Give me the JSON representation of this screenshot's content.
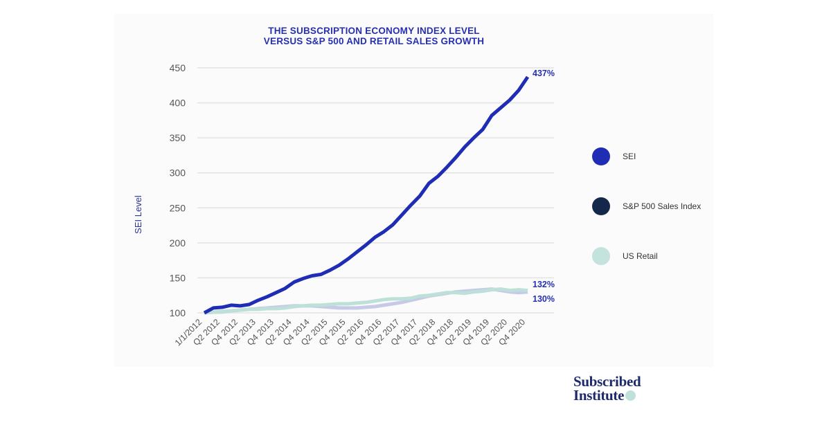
{
  "chart_data": {
    "type": "line",
    "title": "THE SUBSCRIPTION ECONOMY INDEX LEVEL VERSUS S&P 500 AND RETAIL SALES GROWTH",
    "title_lines": [
      "THE SUBSCRIPTION ECONOMY INDEX LEVEL",
      "VERSUS S&P 500 AND RETAIL SALES GROWTH"
    ],
    "ylabel": "SEI Level",
    "xlabel": "",
    "ylim": [
      100,
      450
    ],
    "y_ticks": [
      100,
      150,
      200,
      250,
      300,
      350,
      400,
      450
    ],
    "x_tick_labels": [
      "1/1/2012",
      "Q2 2012",
      "Q4 2012",
      "Q2 2013",
      "Q4 2013",
      "Q2 2014",
      "Q4 2014",
      "Q2 2015",
      "Q4 2015",
      "Q2 2016",
      "Q4 2016",
      "Q2 2017",
      "Q4 2017",
      "Q2 2018",
      "Q4 2018",
      "Q2 2019",
      "Q4 2019",
      "Q2 2020",
      "Q4 2020"
    ],
    "grid": true,
    "legend_position": "right",
    "series": [
      {
        "name": "SEI",
        "color": "#1f2db5",
        "values": [
          100,
          107,
          108,
          111,
          110,
          112,
          118,
          123,
          129,
          135,
          144,
          149,
          153,
          155,
          161,
          168,
          177,
          187,
          197,
          208,
          216,
          226,
          240,
          254,
          267,
          285,
          295,
          308,
          322,
          337,
          350,
          362,
          382,
          393,
          404,
          418,
          437
        ],
        "end_label": "437%"
      },
      {
        "name": "S&P 500 Sales Index",
        "color": "#c6c9e8",
        "legend_color": "#13284a",
        "values": [
          100,
          101,
          102,
          103,
          104,
          105,
          106,
          107,
          108,
          109,
          110,
          110,
          110,
          109,
          108,
          107,
          107,
          107,
          108,
          109,
          111,
          113,
          115,
          118,
          121,
          124,
          126,
          128,
          130,
          131,
          132,
          133,
          134,
          132,
          130,
          129,
          130
        ],
        "end_label": "130%"
      },
      {
        "name": "US Retail",
        "color": "#bde0d8",
        "values": [
          100,
          101,
          101,
          103,
          104,
          105,
          105,
          106,
          106,
          107,
          109,
          110,
          111,
          111,
          112,
          113,
          113,
          114,
          115,
          117,
          119,
          120,
          120,
          121,
          124,
          125,
          127,
          129,
          129,
          128,
          130,
          131,
          133,
          134,
          132,
          133,
          132
        ],
        "end_label": "132%"
      }
    ]
  },
  "logo": {
    "line1": "Subscribed",
    "line2": "Institute"
  }
}
